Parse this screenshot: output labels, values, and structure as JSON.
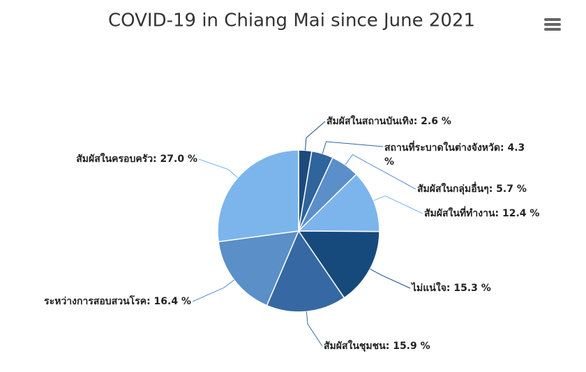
{
  "chart_data": {
    "type": "pie",
    "title": "COVID-19 in Chiang Mai since June 2021",
    "values": [
      2.6,
      4.3,
      5.7,
      12.4,
      15.3,
      15.9,
      16.4,
      27.0
    ],
    "value_labels": [
      "สัมผัสในสถานบันเทิง: 2.6 %",
      "สถานที่ระบาดในต่างจังหวัด: 4.3 %",
      "สัมผัสในกลุ่มอื่นๆ: 5.7 %",
      "สัมผัสในที่ทำงาน: 12.4 %",
      "ไม่แน่ใจ: 15.3 %",
      "สัมผัสในชุมชน: 15.9 %",
      "ระหว่างการสอบสวนโรค: 16.4 %",
      "สัมผัสในครอบครัว: 27.0 %"
    ],
    "colors": [
      "#1d4a7c",
      "#2f649c",
      "#5a8fca",
      "#7cb5ec",
      "#174a7c",
      "#3669a3",
      "#5a8fc8",
      "#7cb5ec"
    ]
  }
}
